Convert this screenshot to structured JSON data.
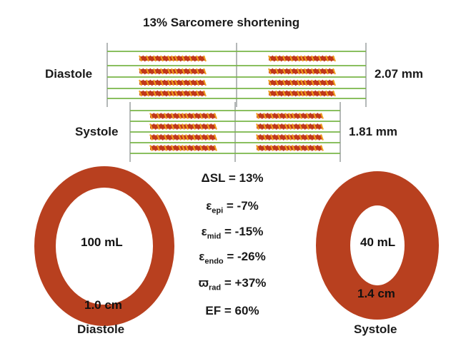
{
  "title": "13% Sarcomere shortening",
  "sarcomere": {
    "diastole": {
      "label": "Diastole",
      "length": "2.07 mm"
    },
    "systole": {
      "label": "Systole",
      "length": "1.81 mm"
    }
  },
  "ventricle": {
    "diastole": {
      "label": "Diastole",
      "volume": "100 mL",
      "wall_thickness": "1.0 cm"
    },
    "systole": {
      "label": "Systole",
      "volume": "40 mL",
      "wall_thickness": "1.4 cm"
    }
  },
  "metrics": {
    "dsl": {
      "symbol": "ΔSL",
      "value": "= 13%"
    },
    "epi": {
      "symbol": "ε",
      "sub": "epi",
      "value": "= -7%"
    },
    "mid": {
      "symbol": "ε",
      "sub": "mid",
      "value": "= -15%"
    },
    "endo": {
      "symbol": "ε",
      "sub": "endo",
      "value": "= -26%"
    },
    "rad": {
      "symbol": "ϖ",
      "sub": "rad",
      "value": "= +37%"
    },
    "ef": {
      "symbol": "EF",
      "value": "= 60%"
    }
  },
  "colors": {
    "myocardium": "#b8401f",
    "actin": "#7ab648",
    "myosin_dark": "#c0391b",
    "myosin_light": "#f0a020",
    "z_line": "#9aa0a0"
  }
}
